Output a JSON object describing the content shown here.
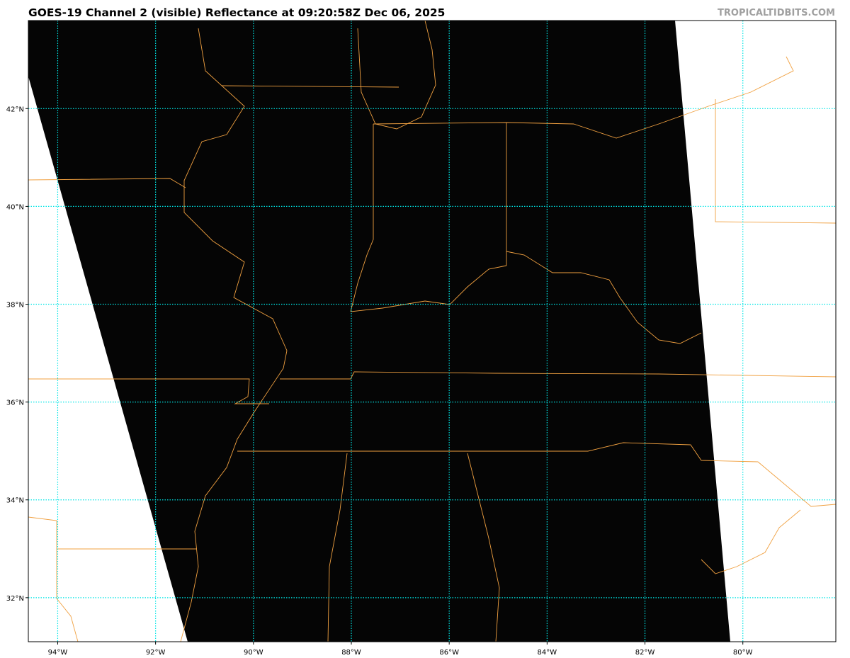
{
  "header": {
    "title": "GOES-19 Channel 2 (visible) Reflectance at 09:20:58Z Dec 06, 2025",
    "credit": "TROPICALTIDBITS.COM"
  },
  "map": {
    "projection": "lat-lon",
    "extent": {
      "lon": [
        -94.6,
        -78.1
      ],
      "lat": [
        31.1,
        43.8
      ]
    },
    "longitude_ticks": [
      {
        "value": -94,
        "label": "94°W"
      },
      {
        "value": -92,
        "label": "92°W"
      },
      {
        "value": -90,
        "label": "90°W"
      },
      {
        "value": -88,
        "label": "88°W"
      },
      {
        "value": -86,
        "label": "86°W"
      },
      {
        "value": -84,
        "label": "84°W"
      },
      {
        "value": -82,
        "label": "82°W"
      },
      {
        "value": -80,
        "label": "80°W"
      }
    ],
    "latitude_ticks": [
      {
        "value": 42,
        "label": "42°N"
      },
      {
        "value": 40,
        "label": "40°N"
      },
      {
        "value": 38,
        "label": "38°N"
      },
      {
        "value": 36,
        "label": "36°N"
      },
      {
        "value": 34,
        "label": "34°N"
      },
      {
        "value": 32,
        "label": "32°N"
      }
    ],
    "colors": {
      "imagery": "#050505",
      "no_data": "#ffffff",
      "borders": "#f0a040",
      "gridlines": "#00e5e5"
    }
  }
}
